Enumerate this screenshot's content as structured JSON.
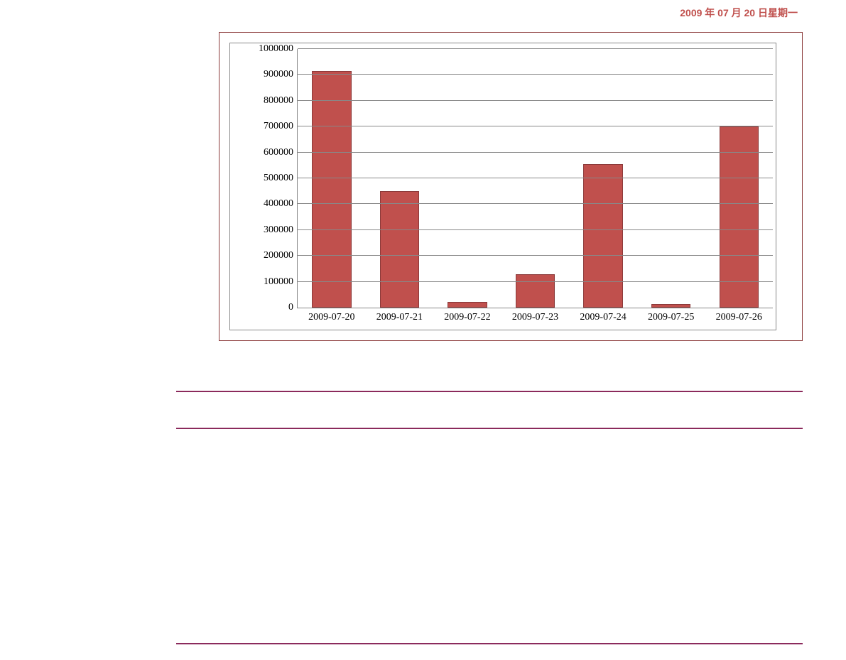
{
  "header": {
    "date_text": "2009 年 07 月 20 日星期一",
    "text_color": "#c0504d",
    "font_size": 14
  },
  "chart": {
    "type": "bar",
    "border_color": "#8b3a3a",
    "background_color": "#ffffff",
    "grid_color": "#888888",
    "ylim": [
      0,
      1000000
    ],
    "ytick_step": 100000,
    "yticks": [
      0,
      100000,
      200000,
      300000,
      400000,
      500000,
      600000,
      700000,
      800000,
      900000,
      1000000
    ],
    "categories": [
      "2009-07-20",
      "2009-07-21",
      "2009-07-22",
      "2009-07-23",
      "2009-07-24",
      "2009-07-25",
      "2009-07-26"
    ],
    "values": [
      915000,
      450000,
      22000,
      130000,
      555000,
      15000,
      700000
    ],
    "bar_color": "#c0504d",
    "bar_border_color": "#8b3a3a",
    "bar_width": 0.58,
    "axis_label_fontsize": 14,
    "axis_label_color": "#000000"
  },
  "dividers": {
    "color": "#8b2a5c",
    "positions": [
      550,
      602,
      905
    ]
  }
}
